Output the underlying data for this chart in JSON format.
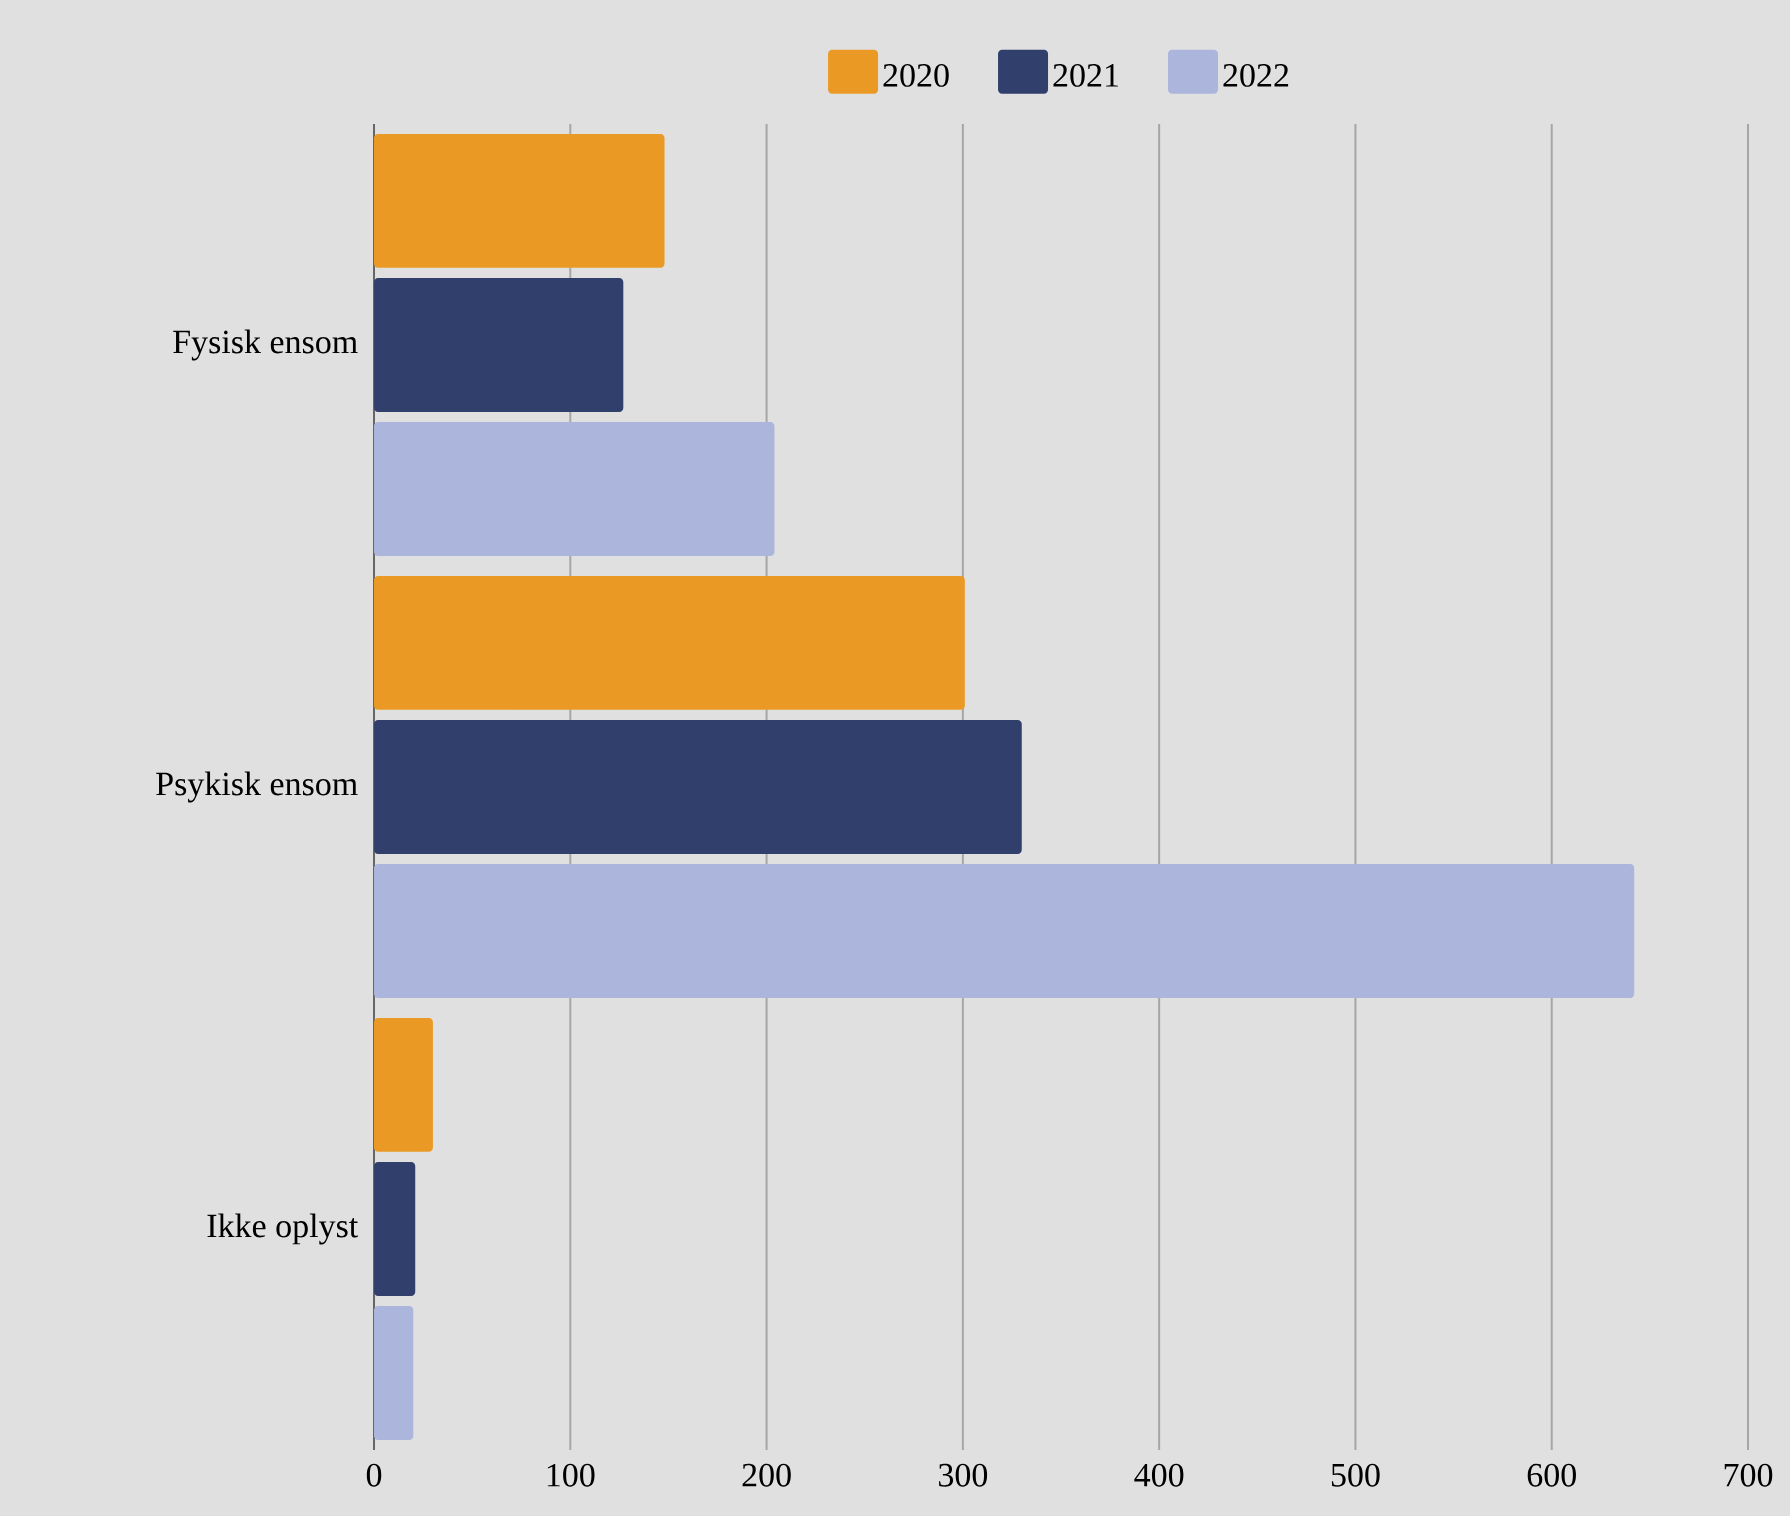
{
  "chart_data": {
    "type": "bar",
    "orientation": "horizontal",
    "categories": [
      "Fysisk ensom",
      "Psykisk ensom",
      "Ikke oplyst"
    ],
    "series": [
      {
        "name": "2020",
        "color": "#ea9a24",
        "values": [
          148,
          301,
          30
        ]
      },
      {
        "name": "2021",
        "color": "#313f6c",
        "values": [
          127,
          330,
          21
        ]
      },
      {
        "name": "2022",
        "color": "#acb5dc",
        "values": [
          204,
          642,
          20
        ]
      }
    ],
    "xlim": [
      0,
      700
    ],
    "xticks": [
      0,
      100,
      200,
      300,
      400,
      500,
      600,
      700
    ],
    "grid": "x",
    "legend": "top"
  }
}
